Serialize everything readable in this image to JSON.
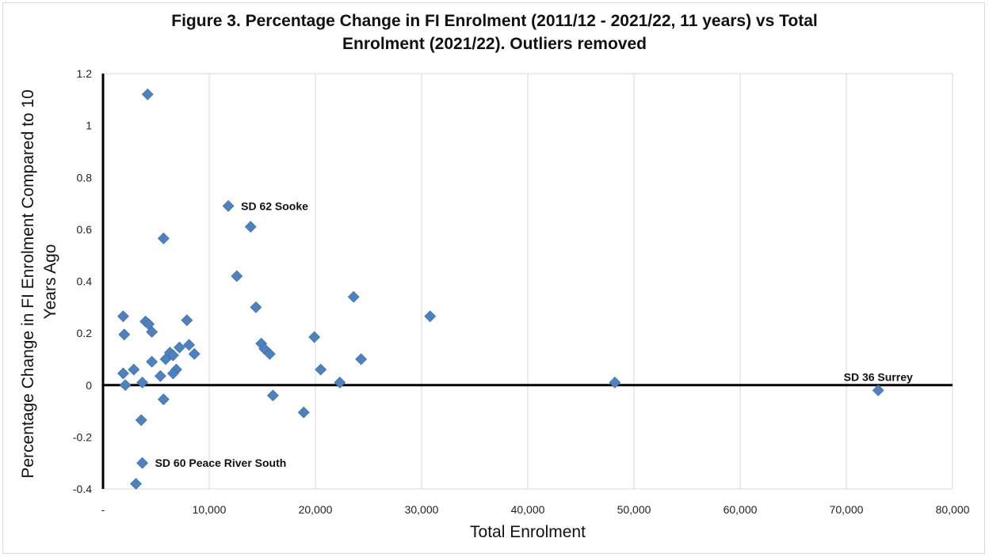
{
  "chart_data": {
    "type": "scatter",
    "title_line1": "Figure 3. Percentage Change in FI Enrolment (2011/12 - 2021/22, 11 years) vs Total",
    "title_line2": "Enrolment (2021/22). Outliers removed",
    "xlabel": "Total Enrolment",
    "ylabel_line1": "Percentage Change in FI Enrolment Compared to 10",
    "ylabel_line2": "Years Ago",
    "xlim": [
      0,
      80000
    ],
    "ylim": [
      -0.4,
      1.2
    ],
    "x_tick_values": [
      0,
      10000,
      20000,
      30000,
      40000,
      50000,
      60000,
      70000,
      80000
    ],
    "x_tick_labels": [
      "-",
      "10,000",
      "20,000",
      "30,000",
      "40,000",
      "50,000",
      "60,000",
      "70,000",
      "80,000"
    ],
    "y_tick_values": [
      -0.4,
      -0.2,
      0,
      0.2,
      0.4,
      0.6,
      0.8,
      1,
      1.2
    ],
    "y_tick_labels": [
      "-0.4",
      "-0.2",
      "0",
      "0.2",
      "0.4",
      "0.6",
      "0.8",
      "1",
      "1.2"
    ],
    "grid": "vertical",
    "marker_color": "#4f81bd",
    "points": [
      {
        "x": 4200,
        "y": 1.12
      },
      {
        "x": 11800,
        "y": 0.69
      },
      {
        "x": 13900,
        "y": 0.61
      },
      {
        "x": 5700,
        "y": 0.565
      },
      {
        "x": 12600,
        "y": 0.42
      },
      {
        "x": 23600,
        "y": 0.34
      },
      {
        "x": 14400,
        "y": 0.3
      },
      {
        "x": 1900,
        "y": 0.265
      },
      {
        "x": 30800,
        "y": 0.265
      },
      {
        "x": 4000,
        "y": 0.245
      },
      {
        "x": 4300,
        "y": 0.235
      },
      {
        "x": 7900,
        "y": 0.25
      },
      {
        "x": 4600,
        "y": 0.205
      },
      {
        "x": 2000,
        "y": 0.195
      },
      {
        "x": 19900,
        "y": 0.185
      },
      {
        "x": 14900,
        "y": 0.16
      },
      {
        "x": 8100,
        "y": 0.155
      },
      {
        "x": 15200,
        "y": 0.14
      },
      {
        "x": 7200,
        "y": 0.145
      },
      {
        "x": 6300,
        "y": 0.125
      },
      {
        "x": 15700,
        "y": 0.12
      },
      {
        "x": 8600,
        "y": 0.12
      },
      {
        "x": 6600,
        "y": 0.115
      },
      {
        "x": 5900,
        "y": 0.1
      },
      {
        "x": 24300,
        "y": 0.1
      },
      {
        "x": 4600,
        "y": 0.09
      },
      {
        "x": 2900,
        "y": 0.06
      },
      {
        "x": 6900,
        "y": 0.06
      },
      {
        "x": 20500,
        "y": 0.06
      },
      {
        "x": 1900,
        "y": 0.045
      },
      {
        "x": 6600,
        "y": 0.045
      },
      {
        "x": 5400,
        "y": 0.035
      },
      {
        "x": 3700,
        "y": 0.01
      },
      {
        "x": 22300,
        "y": 0.01
      },
      {
        "x": 48200,
        "y": 0.01
      },
      {
        "x": 2100,
        "y": 0.0
      },
      {
        "x": 73000,
        "y": -0.02
      },
      {
        "x": 16000,
        "y": -0.04
      },
      {
        "x": 5700,
        "y": -0.055
      },
      {
        "x": 18900,
        "y": -0.105
      },
      {
        "x": 3600,
        "y": -0.135
      },
      {
        "x": 3700,
        "y": -0.3
      },
      {
        "x": 3100,
        "y": -0.38
      }
    ],
    "annotations": [
      {
        "text": "SD 62 Sooke",
        "x": 11800,
        "y": 0.69,
        "pos": "right"
      },
      {
        "text": "SD 36 Surrey",
        "x": 73000,
        "y": -0.02,
        "pos": "above"
      },
      {
        "text": "SD 60 Peace River South",
        "x": 3700,
        "y": -0.3,
        "pos": "right"
      }
    ]
  }
}
